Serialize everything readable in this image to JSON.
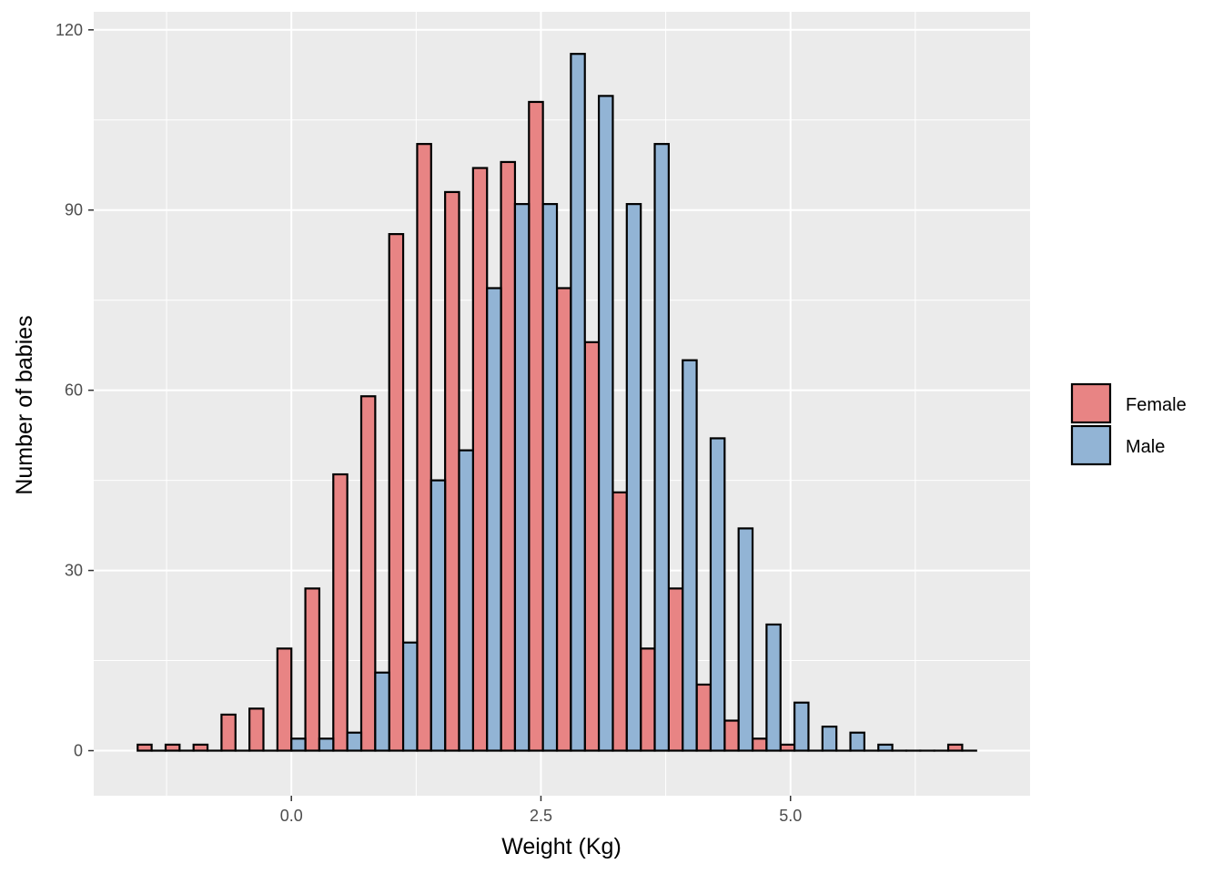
{
  "chart_data": {
    "type": "bar",
    "title": "",
    "xlabel": "Weight (Kg)",
    "ylabel": "Number of babies",
    "xlim": [
      -1.98,
      7.4
    ],
    "ylim": [
      -7.5,
      123
    ],
    "x_ticks": [
      0,
      2.5,
      5
    ],
    "x_tick_labels": [
      "0.0",
      "2.5",
      "5.0"
    ],
    "y_ticks": [
      0,
      30,
      60,
      90,
      120
    ],
    "y_tick_labels": [
      "0",
      "30",
      "60",
      "90",
      "120"
    ],
    "grid": true,
    "legend_position": "right",
    "bin_width": 0.28,
    "series": [
      {
        "name": "Female",
        "color": "#e88484",
        "bins": [
          {
            "x": -1.4,
            "count": 1
          },
          {
            "x": -1.12,
            "count": 1
          },
          {
            "x": -0.84,
            "count": 1
          },
          {
            "x": -0.56,
            "count": 6
          },
          {
            "x": -0.28,
            "count": 7
          },
          {
            "x": 0.0,
            "count": 17
          },
          {
            "x": 0.28,
            "count": 27
          },
          {
            "x": 0.56,
            "count": 46
          },
          {
            "x": 0.84,
            "count": 59
          },
          {
            "x": 1.12,
            "count": 86
          },
          {
            "x": 1.4,
            "count": 101
          },
          {
            "x": 1.68,
            "count": 93
          },
          {
            "x": 1.96,
            "count": 97
          },
          {
            "x": 2.24,
            "count": 98
          },
          {
            "x": 2.52,
            "count": 108
          },
          {
            "x": 2.8,
            "count": 77
          },
          {
            "x": 3.08,
            "count": 68
          },
          {
            "x": 3.36,
            "count": 43
          },
          {
            "x": 3.64,
            "count": 17
          },
          {
            "x": 3.92,
            "count": 27
          },
          {
            "x": 4.2,
            "count": 11
          },
          {
            "x": 4.48,
            "count": 5
          },
          {
            "x": 4.76,
            "count": 2
          },
          {
            "x": 5.04,
            "count": 1
          },
          {
            "x": 5.32,
            "count": 0
          },
          {
            "x": 5.6,
            "count": 0
          },
          {
            "x": 5.88,
            "count": 0
          },
          {
            "x": 6.16,
            "count": 0
          },
          {
            "x": 6.44,
            "count": 0
          },
          {
            "x": 6.72,
            "count": 1
          }
        ]
      },
      {
        "name": "Male",
        "color": "#92b4d5",
        "bins": [
          {
            "x": -1.4,
            "count": 0
          },
          {
            "x": -1.12,
            "count": 0
          },
          {
            "x": -0.84,
            "count": 0
          },
          {
            "x": -0.56,
            "count": 0
          },
          {
            "x": -0.28,
            "count": 0
          },
          {
            "x": 0.0,
            "count": 2
          },
          {
            "x": 0.28,
            "count": 2
          },
          {
            "x": 0.56,
            "count": 3
          },
          {
            "x": 0.84,
            "count": 13
          },
          {
            "x": 1.12,
            "count": 18
          },
          {
            "x": 1.4,
            "count": 45
          },
          {
            "x": 1.68,
            "count": 50
          },
          {
            "x": 1.96,
            "count": 77
          },
          {
            "x": 2.24,
            "count": 91
          },
          {
            "x": 2.52,
            "count": 91
          },
          {
            "x": 2.8,
            "count": 116
          },
          {
            "x": 3.08,
            "count": 109
          },
          {
            "x": 3.36,
            "count": 91
          },
          {
            "x": 3.64,
            "count": 101
          },
          {
            "x": 3.92,
            "count": 65
          },
          {
            "x": 4.2,
            "count": 52
          },
          {
            "x": 4.48,
            "count": 37
          },
          {
            "x": 4.76,
            "count": 21
          },
          {
            "x": 5.04,
            "count": 8
          },
          {
            "x": 5.32,
            "count": 4
          },
          {
            "x": 5.6,
            "count": 3
          },
          {
            "x": 5.88,
            "count": 1
          },
          {
            "x": 6.16,
            "count": 0
          },
          {
            "x": 6.44,
            "count": 0
          },
          {
            "x": 6.72,
            "count": 0
          }
        ]
      }
    ],
    "colors": {
      "panel_background": "#ebebeb",
      "grid": "#ffffff",
      "bar_outline": "#000000"
    }
  }
}
